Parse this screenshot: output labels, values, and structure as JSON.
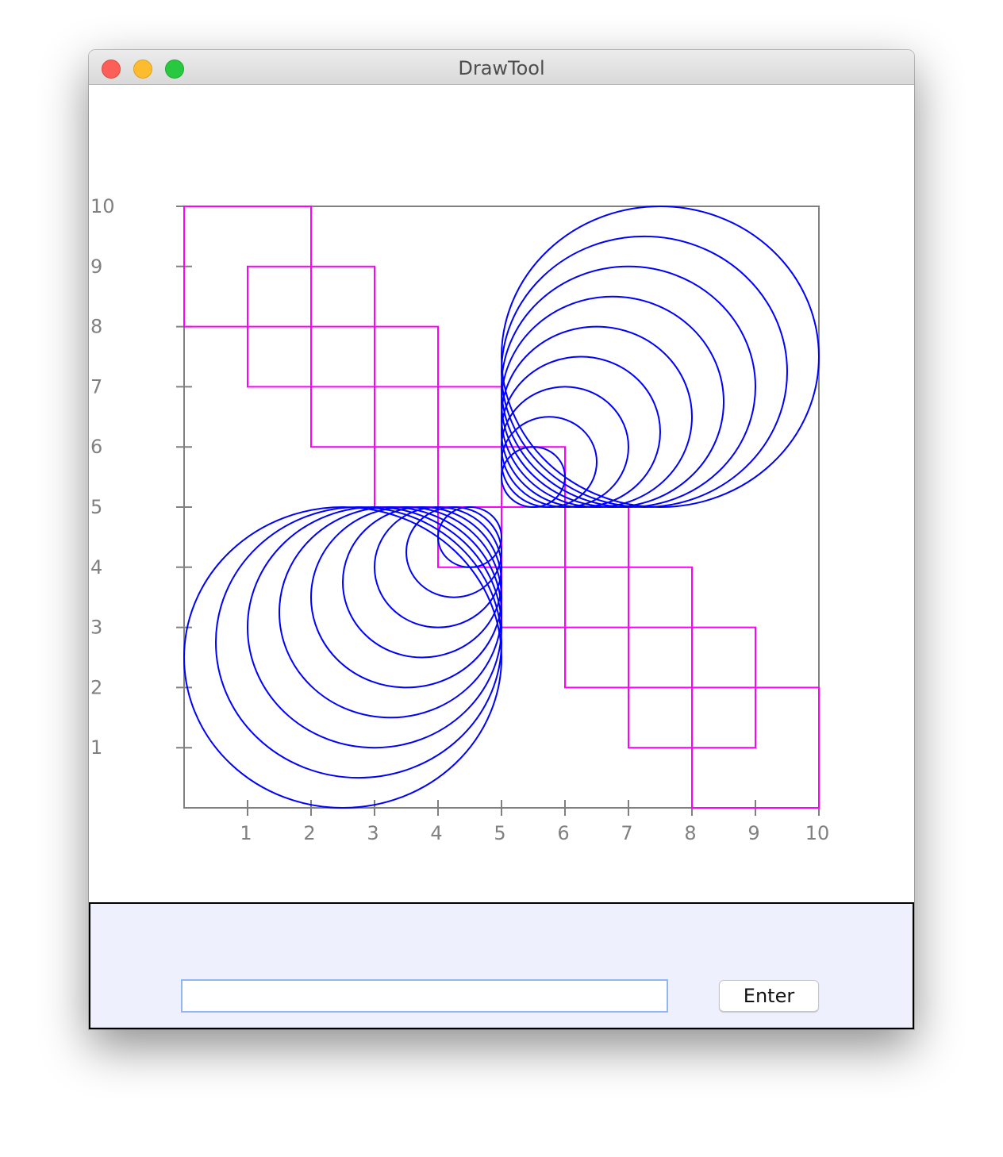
{
  "window": {
    "title": "DrawTool",
    "buttons": [
      "close",
      "minimize",
      "maximize"
    ]
  },
  "colors": {
    "axis": "#808080",
    "squares": "#ff00ff",
    "circles": "#0000ff",
    "input_panel": "#eff0fd"
  },
  "chart_data": {
    "type": "scatter",
    "xlim": [
      0,
      10
    ],
    "ylim": [
      0,
      10
    ],
    "x_ticks": [
      "1",
      "2",
      "3",
      "4",
      "5",
      "6",
      "7",
      "8",
      "9",
      "10"
    ],
    "y_ticks": [
      "1",
      "2",
      "3",
      "4",
      "5",
      "6",
      "7",
      "8",
      "9",
      "10"
    ],
    "squares": [
      {
        "x": 0,
        "y": 8,
        "size": 2
      },
      {
        "x": 1,
        "y": 7,
        "size": 2
      },
      {
        "x": 2,
        "y": 6,
        "size": 2
      },
      {
        "x": 3,
        "y": 5,
        "size": 2
      },
      {
        "x": 4,
        "y": 4,
        "size": 2
      },
      {
        "x": 5,
        "y": 3,
        "size": 2
      },
      {
        "x": 6,
        "y": 2,
        "size": 2
      },
      {
        "x": 7,
        "y": 1,
        "size": 2
      },
      {
        "x": 8,
        "y": 0,
        "size": 2
      }
    ],
    "circles_lower_left": [
      {
        "cx": 2.5,
        "cy": 2.5,
        "r": 2.5
      },
      {
        "cx": 2.75,
        "cy": 2.75,
        "r": 2.25
      },
      {
        "cx": 3.0,
        "cy": 3.0,
        "r": 2.0
      },
      {
        "cx": 3.25,
        "cy": 3.25,
        "r": 1.75
      },
      {
        "cx": 3.5,
        "cy": 3.5,
        "r": 1.5
      },
      {
        "cx": 3.75,
        "cy": 3.75,
        "r": 1.25
      },
      {
        "cx": 4.0,
        "cy": 4.0,
        "r": 1.0
      },
      {
        "cx": 4.25,
        "cy": 4.25,
        "r": 0.75
      },
      {
        "cx": 4.5,
        "cy": 4.5,
        "r": 0.5
      }
    ],
    "circles_upper_right": [
      {
        "cx": 7.5,
        "cy": 7.5,
        "r": 2.5
      },
      {
        "cx": 7.25,
        "cy": 7.25,
        "r": 2.25
      },
      {
        "cx": 7.0,
        "cy": 7.0,
        "r": 2.0
      },
      {
        "cx": 6.75,
        "cy": 6.75,
        "r": 1.75
      },
      {
        "cx": 6.5,
        "cy": 6.5,
        "r": 1.5
      },
      {
        "cx": 6.25,
        "cy": 6.25,
        "r": 1.25
      },
      {
        "cx": 6.0,
        "cy": 6.0,
        "r": 1.0
      },
      {
        "cx": 5.75,
        "cy": 5.75,
        "r": 0.75
      },
      {
        "cx": 5.5,
        "cy": 5.5,
        "r": 0.5
      }
    ],
    "grid": false,
    "legend": "none"
  },
  "input_panel": {
    "command_value": "",
    "enter_label": "Enter"
  }
}
